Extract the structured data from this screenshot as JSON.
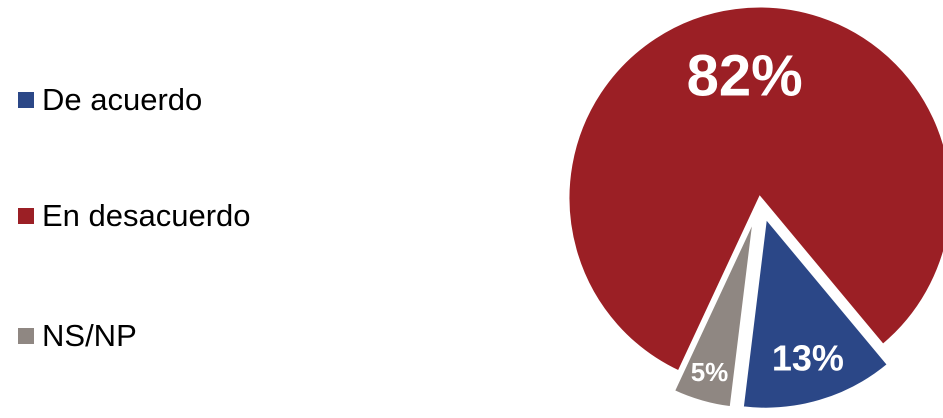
{
  "chart_data": {
    "type": "pie",
    "categories": [
      "De acuerdo",
      "En desacuerdo",
      "NS/NP"
    ],
    "values": [
      13,
      82,
      5
    ],
    "labels": [
      "13%",
      "82%",
      "5%"
    ],
    "colors": [
      "#2b4787",
      "#9b1f25",
      "#8f8782"
    ],
    "legend_position": "left",
    "exploded": true
  }
}
